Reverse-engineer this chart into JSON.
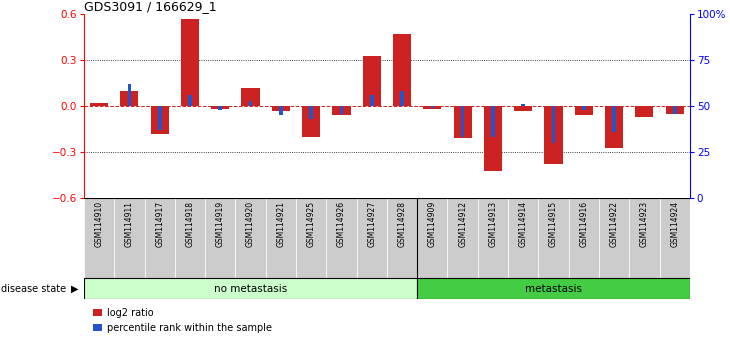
{
  "title": "GDS3091 / 166629_1",
  "samples": [
    "GSM114910",
    "GSM114911",
    "GSM114917",
    "GSM114918",
    "GSM114919",
    "GSM114920",
    "GSM114921",
    "GSM114925",
    "GSM114926",
    "GSM114927",
    "GSM114928",
    "GSM114909",
    "GSM114912",
    "GSM114913",
    "GSM114914",
    "GSM114915",
    "GSM114916",
    "GSM114922",
    "GSM114923",
    "GSM114924"
  ],
  "log2_ratio": [
    0.02,
    0.1,
    -0.18,
    0.57,
    -0.02,
    0.12,
    -0.03,
    -0.2,
    -0.06,
    0.33,
    0.47,
    -0.02,
    -0.21,
    -0.42,
    -0.03,
    -0.38,
    -0.06,
    -0.27,
    -0.07,
    -0.05
  ],
  "pct_rank": [
    50,
    62,
    37,
    56,
    48,
    53,
    45,
    43,
    46,
    56,
    58,
    49,
    33,
    33,
    51,
    30,
    48,
    36,
    50,
    46
  ],
  "no_metastasis_count": 11,
  "metastasis_count": 9,
  "ylim_left": [
    -0.6,
    0.6
  ],
  "ylim_right": [
    0,
    100
  ],
  "yticks_left": [
    -0.6,
    -0.3,
    0,
    0.3,
    0.6
  ],
  "yticks_right": [
    0,
    25,
    50,
    75,
    100
  ],
  "ytick_labels_right": [
    "0",
    "25",
    "50",
    "75",
    "100%"
  ],
  "bar_color_red": "#cc2222",
  "bar_color_blue": "#2255cc",
  "no_meta_color": "#ccffcc",
  "meta_color": "#44cc44",
  "bg_color": "#ffffff",
  "zero_line_color": "#cc2222",
  "label_log2": "log2 ratio",
  "label_pct": "percentile rank within the sample",
  "disease_state_label": "disease state",
  "no_metastasis_label": "no metastasis",
  "metastasis_label": "metastasis"
}
